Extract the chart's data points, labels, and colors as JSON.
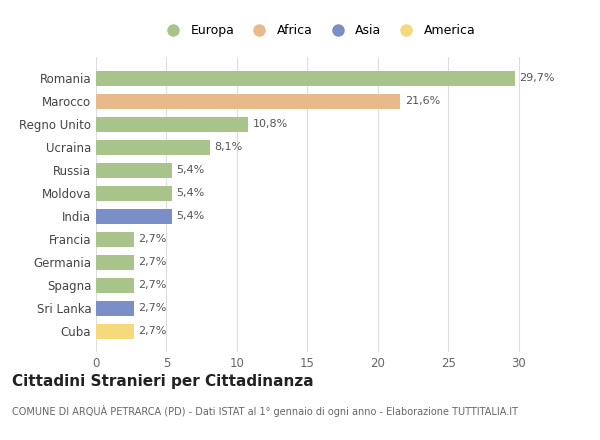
{
  "categories": [
    "Romania",
    "Marocco",
    "Regno Unito",
    "Ucraina",
    "Russia",
    "Moldova",
    "India",
    "Francia",
    "Germania",
    "Spagna",
    "Sri Lanka",
    "Cuba"
  ],
  "values": [
    29.7,
    21.6,
    10.8,
    8.1,
    5.4,
    5.4,
    5.4,
    2.7,
    2.7,
    2.7,
    2.7,
    2.7
  ],
  "labels": [
    "29,7%",
    "21,6%",
    "10,8%",
    "8,1%",
    "5,4%",
    "5,4%",
    "5,4%",
    "2,7%",
    "2,7%",
    "2,7%",
    "2,7%",
    "2,7%"
  ],
  "colors": [
    "#a8c48a",
    "#e8b98a",
    "#a8c48a",
    "#a8c48a",
    "#a8c48a",
    "#a8c48a",
    "#7b8ec8",
    "#a8c48a",
    "#a8c48a",
    "#a8c48a",
    "#7b8ec8",
    "#f5d97a"
  ],
  "legend_labels": [
    "Europa",
    "Africa",
    "Asia",
    "America"
  ],
  "legend_colors": [
    "#a8c48a",
    "#e8b98a",
    "#7b8ec8",
    "#f5d97a"
  ],
  "title": "Cittadini Stranieri per Cittadinanza",
  "subtitle": "COMUNE DI ARQUÀ PETRARCA (PD) - Dati ISTAT al 1° gennaio di ogni anno - Elaborazione TUTTITALIA.IT",
  "xlim": [
    0,
    31.5
  ],
  "xticks": [
    0,
    5,
    10,
    15,
    20,
    25,
    30
  ],
  "background_color": "#ffffff",
  "grid_color": "#dddddd",
  "title_fontsize": 11,
  "subtitle_fontsize": 7,
  "bar_label_fontsize": 8,
  "tick_fontsize": 8.5,
  "legend_fontsize": 9
}
